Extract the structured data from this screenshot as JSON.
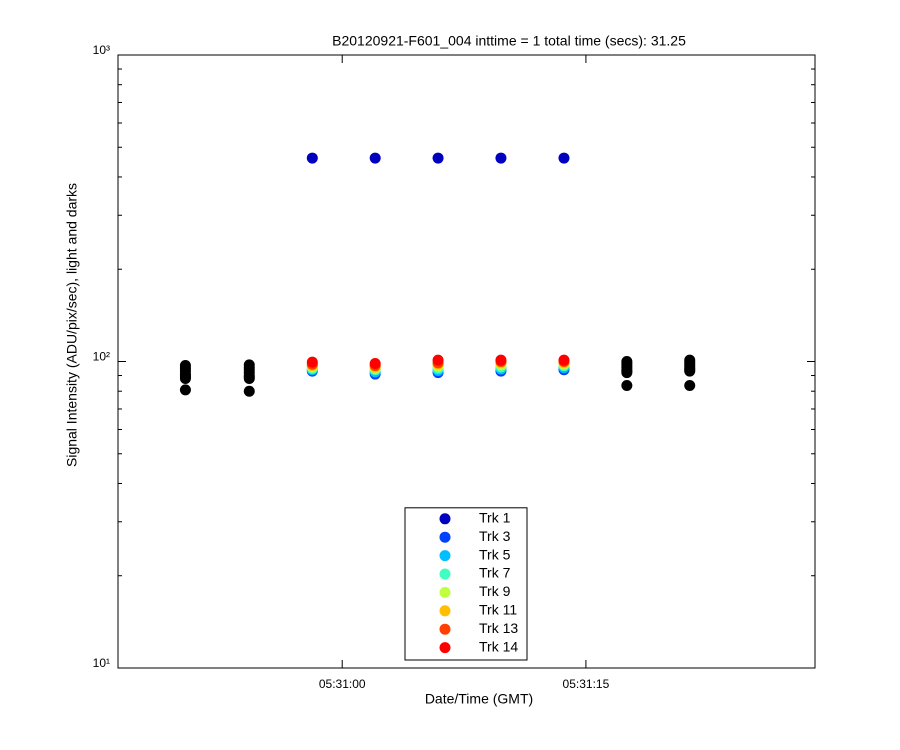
{
  "chart_data": {
    "type": "scatter",
    "title": "B20120921-F601_004 inttime = 1 total time (secs): 31.25",
    "xlabel": "Date/Time (GMT)",
    "ylabel": "Signal Intensity (ADU/pix/sec), light and darks",
    "x": [
      19850.35,
      19854.28,
      19858.16,
      19862.03,
      19865.9,
      19869.77,
      19873.65,
      19877.52,
      19881.39
    ],
    "xlim": [
      19846.2,
      19889.1
    ],
    "xticks": [
      {
        "value": 19860,
        "label": "05:31:00"
      },
      {
        "value": 19875,
        "label": "05:31:15"
      }
    ],
    "ylim": [
      10,
      1000
    ],
    "log_y": true,
    "yticks": [
      {
        "value": 10,
        "label": "10¹"
      },
      {
        "value": 100,
        "label": "10²"
      },
      {
        "value": 1000,
        "label": "10³"
      }
    ],
    "yminorticks": [
      20,
      30,
      40,
      50,
      60,
      70,
      80,
      90,
      200,
      300,
      400,
      500,
      600,
      700,
      800,
      900
    ],
    "legend": "south",
    "series": [
      {
        "color": "#000000",
        "values": [
          97,
          97.5,
          null,
          null,
          null,
          null,
          null,
          100,
          101
        ]
      },
      {
        "color": "#000000",
        "values": [
          95,
          95.5,
          null,
          null,
          null,
          null,
          null,
          98.5,
          99.5
        ]
      },
      {
        "color": "#000000",
        "values": [
          93,
          94,
          null,
          null,
          null,
          null,
          null,
          97,
          98
        ]
      },
      {
        "color": "#000000",
        "values": [
          91,
          92,
          null,
          null,
          null,
          null,
          null,
          95.5,
          96.5
        ]
      },
      {
        "color": "#000000",
        "values": [
          90,
          90,
          null,
          null,
          null,
          null,
          null,
          94,
          95
        ]
      },
      {
        "color": "#000000",
        "values": [
          89,
          89,
          null,
          null,
          null,
          null,
          null,
          93,
          94
        ]
      },
      {
        "color": "#000000",
        "values": [
          88,
          88,
          null,
          null,
          null,
          null,
          null,
          92,
          93
        ]
      },
      {
        "color": "#000000",
        "values": [
          80.8,
          80,
          null,
          null,
          null,
          null,
          null,
          83.5,
          83.5
        ]
      },
      {
        "name": "Trk 1",
        "color": "#0000bf",
        "values": [
          null,
          null,
          461,
          461,
          461,
          461,
          461,
          null,
          null
        ]
      },
      {
        "name": "Trk 3",
        "color": "#0040ff",
        "values": [
          null,
          null,
          93,
          91,
          92,
          93,
          94,
          null,
          null
        ]
      },
      {
        "name": "Trk 5",
        "color": "#00bfff",
        "values": [
          null,
          null,
          94,
          92.5,
          93.5,
          94.5,
          95.5,
          null,
          null
        ]
      },
      {
        "name": "Trk 7",
        "color": "#40ffbf",
        "values": [
          null,
          null,
          95,
          94,
          95,
          96,
          97,
          null,
          null
        ]
      },
      {
        "name": "Trk 9",
        "color": "#bfff40",
        "values": [
          null,
          null,
          96,
          95,
          96.5,
          97.5,
          98,
          null,
          null
        ]
      },
      {
        "name": "Trk 11",
        "color": "#ffbf00",
        "values": [
          null,
          null,
          97,
          96,
          98,
          99,
          99,
          null,
          null
        ]
      },
      {
        "name": "Trk 13",
        "color": "#ff4000",
        "values": [
          null,
          null,
          98,
          97,
          99,
          100,
          100,
          null,
          null
        ]
      },
      {
        "name": "Trk 14",
        "color": "#ff0000",
        "values": [
          null,
          null,
          99.5,
          98.5,
          101,
          101,
          101,
          null,
          null
        ]
      }
    ]
  }
}
